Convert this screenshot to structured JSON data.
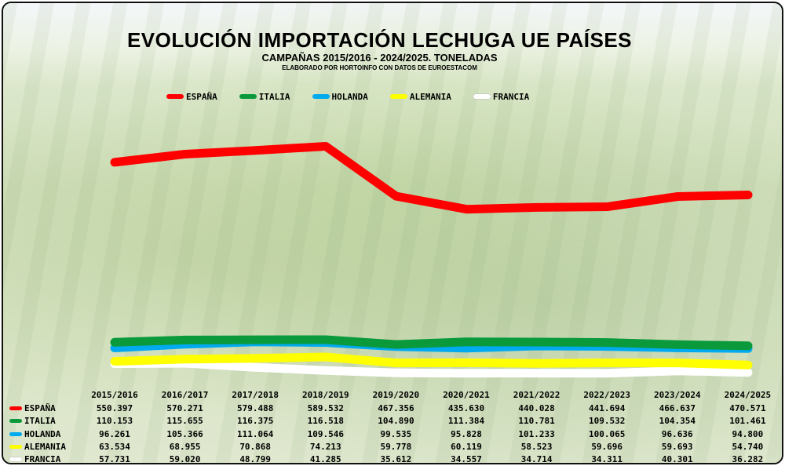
{
  "chart_data": {
    "type": "line",
    "title": "EVOLUCIÓN IMPORTACIÓN LECHUGA UE PAÍSES",
    "subtitle": "CAMPAÑAS 2015/2016 - 2024/2025. TONELADAS",
    "source": "ELABORADO POR HORTOINFO CON DATOS DE EUROESTACOM",
    "legend_position": "top",
    "grid": false,
    "categories": [
      "2015/2016",
      "2016/2017",
      "2017/2018",
      "2018/2019",
      "2019/2020",
      "2020/2021",
      "2021/2022",
      "2022/2023",
      "2023/2024",
      "2024/2025"
    ],
    "series": [
      {
        "name": "ESPAÑA",
        "color": "#ff0000",
        "values": [
          550397,
          570271,
          579488,
          589532,
          467356,
          435630,
          440028,
          441694,
          466637,
          470571
        ],
        "labels": [
          "550.397",
          "570.271",
          "579.488",
          "589.532",
          "467.356",
          "435.630",
          "440.028",
          "441.694",
          "466.637",
          "470.571"
        ]
      },
      {
        "name": "ITALIA",
        "color": "#0a9a3c",
        "values": [
          110153,
          115655,
          116375,
          116518,
          104890,
          111384,
          110781,
          109532,
          104354,
          101461
        ],
        "labels": [
          "110.153",
          "115.655",
          "116.375",
          "116.518",
          "104.890",
          "111.384",
          "110.781",
          "109.532",
          "104.354",
          "101.461"
        ]
      },
      {
        "name": "HOLANDA",
        "color": "#00aaee",
        "values": [
          96261,
          105366,
          111064,
          109546,
          99535,
          95828,
          101233,
          100065,
          96636,
          94800
        ],
        "labels": [
          "96.261",
          "105.366",
          "111.064",
          "109.546",
          "99.535",
          "95.828",
          "101.233",
          "100.065",
          "96.636",
          "94.800"
        ]
      },
      {
        "name": "ALEMANIA",
        "color": "#ffff00",
        "values": [
          63534,
          68955,
          70868,
          74213,
          59778,
          60119,
          58523,
          59696,
          59693,
          54740
        ],
        "labels": [
          "63.534",
          "68.955",
          "70.868",
          "74.213",
          "59.778",
          "60.119",
          "58.523",
          "59.696",
          "59.693",
          "54.740"
        ]
      },
      {
        "name": "FRANCIA",
        "color": "#ffffff",
        "values": [
          57731,
          59020,
          48799,
          41285,
          35612,
          34557,
          34714,
          34311,
          40301,
          36282
        ],
        "labels": [
          "57.731",
          "59.020",
          "48.799",
          "41.285",
          "35.612",
          "34.557",
          "34.714",
          "34.311",
          "40.301",
          "36.282"
        ]
      }
    ]
  }
}
